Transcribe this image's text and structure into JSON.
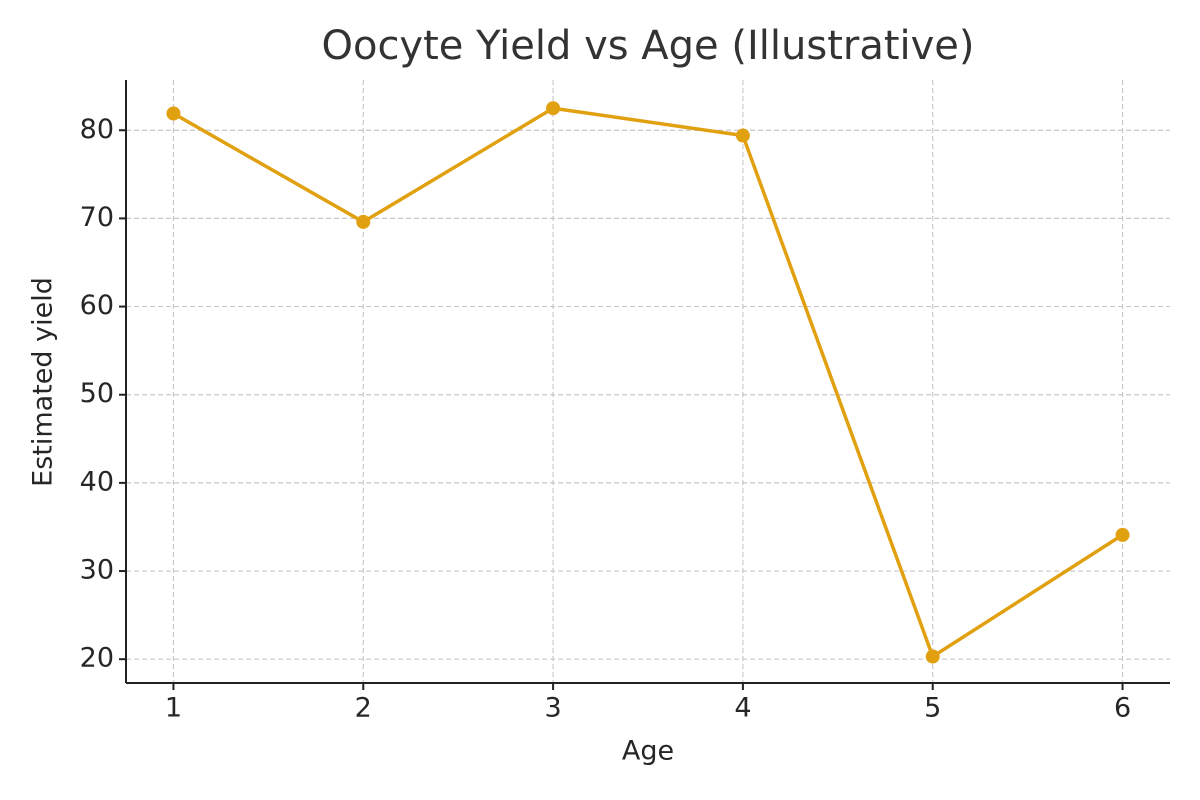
{
  "chart_data": {
    "type": "line",
    "title": "Oocyte Yield vs Age (Illustrative)",
    "x_label": "Age",
    "y_label": "Estimated yield",
    "x": [
      1,
      2,
      3,
      4,
      5,
      6
    ],
    "series": [
      {
        "name": "Estimated yield",
        "color": "#e1a010",
        "values": [
          81.9,
          69.6,
          82.5,
          79.4,
          20.3,
          34.1
        ]
      }
    ],
    "xlim": [
      0.75,
      6.25
    ],
    "ylim": [
      17.3,
      85.7
    ],
    "xticks": [
      1,
      2,
      3,
      4,
      5,
      6
    ],
    "yticks": [
      20,
      30,
      40,
      50,
      60,
      70,
      80
    ],
    "grid": true,
    "legend": false
  }
}
